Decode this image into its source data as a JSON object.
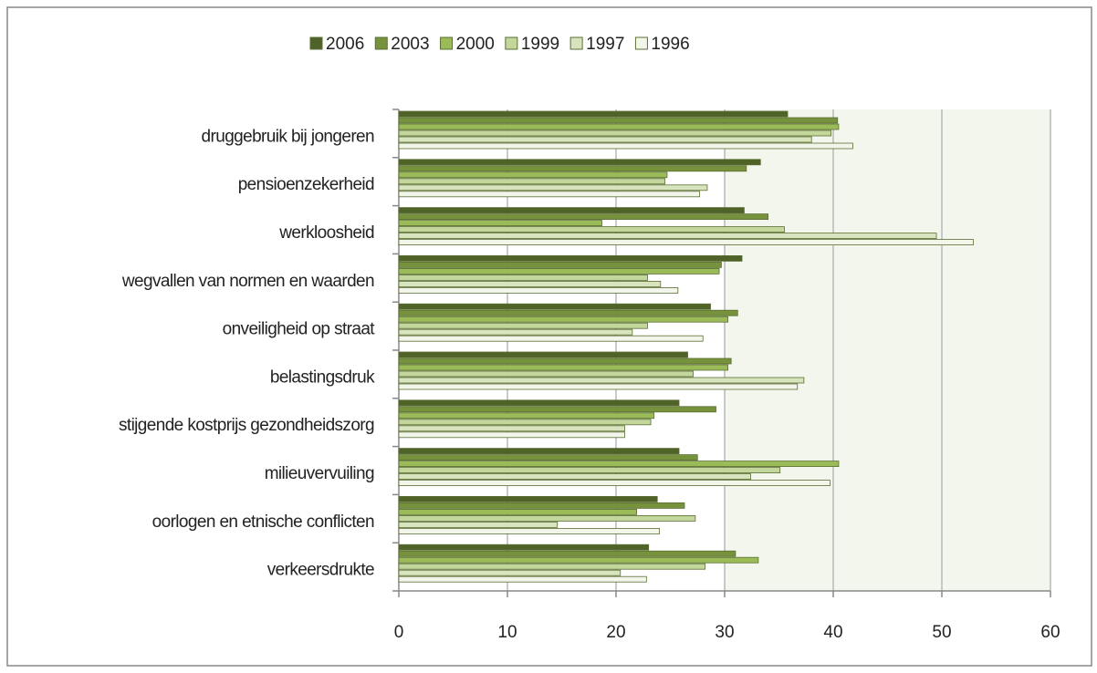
{
  "chart_data": {
    "type": "bar",
    "orientation": "horizontal",
    "categories": [
      "druggebruik bij jongeren",
      "pensioenzekerheid",
      "werkloosheid",
      "wegvallen van normen en waarden",
      "onveiligheid op straat",
      "belastingsdruk",
      "stijgende kostprijs gezondheidszorg",
      "milieuvervuiling",
      "oorlogen en etnische conflicten",
      "verkeersdrukte"
    ],
    "series": [
      {
        "name": "2006",
        "color": "#4f6228",
        "values": [
          35.8,
          33.3,
          31.8,
          31.6,
          28.7,
          26.6,
          25.8,
          25.8,
          23.8,
          23.0
        ]
      },
      {
        "name": "2003",
        "color": "#76923c",
        "values": [
          40.4,
          32.0,
          34.0,
          29.7,
          31.2,
          30.6,
          29.2,
          27.5,
          26.3,
          31.0
        ]
      },
      {
        "name": "2000",
        "color": "#9bbb59",
        "values": [
          40.5,
          24.7,
          18.7,
          29.5,
          30.3,
          30.3,
          23.5,
          40.5,
          21.9,
          33.1
        ]
      },
      {
        "name": "1999",
        "color": "#c3d69b",
        "values": [
          39.8,
          24.5,
          35.5,
          22.9,
          22.9,
          27.1,
          23.2,
          35.1,
          27.3,
          28.2
        ]
      },
      {
        "name": "1997",
        "color": "#d7e4bd",
        "values": [
          38.0,
          28.4,
          49.5,
          24.1,
          21.5,
          37.3,
          20.8,
          32.4,
          14.6,
          20.4
        ]
      },
      {
        "name": "1996",
        "color": "#f2f6ea",
        "values": [
          41.8,
          27.7,
          52.9,
          25.7,
          28.0,
          36.7,
          20.8,
          39.7,
          24.0,
          22.8
        ]
      }
    ],
    "xlim": [
      0,
      60
    ],
    "xticks": [
      0,
      10,
      20,
      30,
      40,
      50,
      60
    ],
    "grid": true,
    "legend": "top"
  }
}
